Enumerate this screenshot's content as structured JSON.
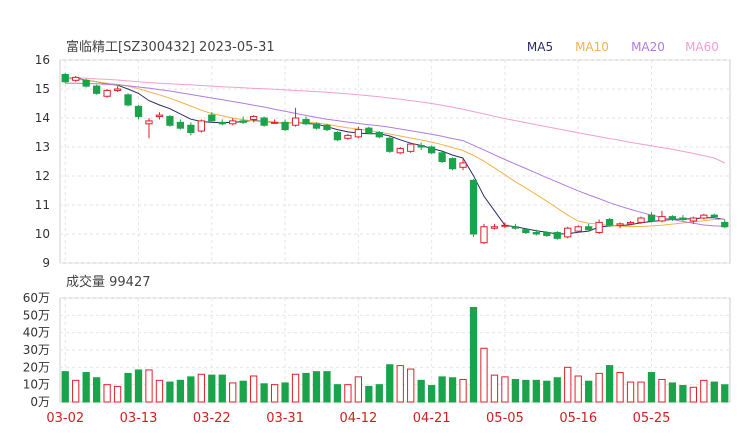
{
  "chart_data": [
    {
      "type": "candlestick",
      "title": "富临精工[SZ300432] 2023-05-31",
      "legend": [
        {
          "name": "MA5",
          "color": "#2a2a6a"
        },
        {
          "name": "MA10",
          "color": "#f2b34a"
        },
        {
          "name": "MA20",
          "color": "#b27ce0"
        },
        {
          "name": "MA60",
          "color": "#f0a0d0"
        }
      ],
      "y_ticks": [
        "16",
        "15",
        "14",
        "13",
        "12",
        "11",
        "10",
        "9"
      ],
      "ylim": [
        9,
        16
      ],
      "x_ticks": [
        {
          "label": "03-02",
          "index": 0
        },
        {
          "label": "03-13",
          "index": 7
        },
        {
          "label": "03-22",
          "index": 14
        },
        {
          "label": "03-31",
          "index": 21
        },
        {
          "label": "04-12",
          "index": 28
        },
        {
          "label": "04-21",
          "index": 35
        },
        {
          "label": "05-05",
          "index": 42
        },
        {
          "label": "05-16",
          "index": 49
        },
        {
          "label": "05-25",
          "index": 56
        }
      ],
      "ohlc": [
        [
          15.5,
          15.55,
          15.2,
          15.25
        ],
        [
          15.3,
          15.45,
          15.25,
          15.4
        ],
        [
          15.3,
          15.35,
          15.05,
          15.1
        ],
        [
          15.1,
          15.15,
          14.8,
          14.85
        ],
        [
          14.75,
          15.0,
          14.7,
          14.95
        ],
        [
          14.95,
          15.1,
          14.9,
          15.0
        ],
        [
          14.8,
          14.85,
          14.4,
          14.45
        ],
        [
          14.4,
          14.45,
          13.95,
          14.05
        ],
        [
          13.8,
          14.0,
          13.3,
          13.9
        ],
        [
          14.05,
          14.2,
          13.95,
          14.1
        ],
        [
          14.05,
          14.1,
          13.7,
          13.75
        ],
        [
          13.85,
          13.95,
          13.6,
          13.65
        ],
        [
          13.75,
          13.85,
          13.4,
          13.5
        ],
        [
          13.55,
          13.95,
          13.5,
          13.9
        ],
        [
          14.1,
          14.2,
          13.85,
          13.9
        ],
        [
          13.85,
          13.95,
          13.75,
          13.8
        ],
        [
          13.8,
          14.0,
          13.75,
          13.9
        ],
        [
          13.9,
          14.05,
          13.8,
          13.85
        ],
        [
          13.95,
          14.1,
          13.85,
          14.05
        ],
        [
          14.0,
          14.05,
          13.7,
          13.75
        ],
        [
          13.85,
          13.95,
          13.8,
          13.85
        ],
        [
          13.85,
          13.95,
          13.55,
          13.6
        ],
        [
          13.75,
          14.35,
          13.7,
          14.0
        ],
        [
          13.95,
          14.05,
          13.75,
          13.8
        ],
        [
          13.8,
          13.85,
          13.6,
          13.65
        ],
        [
          13.75,
          13.8,
          13.55,
          13.6
        ],
        [
          13.5,
          13.55,
          13.2,
          13.25
        ],
        [
          13.3,
          13.45,
          13.25,
          13.4
        ],
        [
          13.35,
          13.7,
          13.3,
          13.6
        ],
        [
          13.65,
          13.7,
          13.45,
          13.5
        ],
        [
          13.5,
          13.55,
          13.3,
          13.35
        ],
        [
          13.3,
          13.35,
          12.8,
          12.85
        ],
        [
          12.8,
          13.0,
          12.75,
          12.95
        ],
        [
          12.85,
          13.15,
          12.8,
          13.1
        ],
        [
          13.05,
          13.15,
          12.9,
          13.0
        ],
        [
          13.0,
          13.05,
          12.75,
          12.8
        ],
        [
          12.8,
          12.85,
          12.45,
          12.5
        ],
        [
          12.6,
          12.65,
          12.2,
          12.25
        ],
        [
          12.3,
          12.6,
          12.2,
          12.45
        ],
        [
          11.85,
          11.9,
          9.9,
          10.0
        ],
        [
          9.7,
          10.35,
          9.65,
          10.25
        ],
        [
          10.2,
          10.35,
          10.15,
          10.25
        ],
        [
          10.3,
          10.4,
          10.2,
          10.3
        ],
        [
          10.25,
          10.35,
          10.15,
          10.2
        ],
        [
          10.15,
          10.2,
          10.0,
          10.05
        ],
        [
          10.05,
          10.15,
          9.95,
          10.0
        ],
        [
          10.05,
          10.1,
          9.9,
          9.95
        ],
        [
          10.05,
          10.1,
          9.8,
          9.85
        ],
        [
          9.9,
          10.25,
          9.85,
          10.2
        ],
        [
          10.1,
          10.3,
          10.05,
          10.25
        ],
        [
          10.25,
          10.35,
          10.1,
          10.15
        ],
        [
          10.05,
          10.5,
          10.0,
          10.4
        ],
        [
          10.5,
          10.55,
          10.25,
          10.3
        ],
        [
          10.3,
          10.4,
          10.2,
          10.35
        ],
        [
          10.35,
          10.45,
          10.3,
          10.4
        ],
        [
          10.4,
          10.6,
          10.35,
          10.55
        ],
        [
          10.65,
          10.75,
          10.4,
          10.45
        ],
        [
          10.45,
          10.8,
          10.4,
          10.6
        ],
        [
          10.6,
          10.65,
          10.45,
          10.5
        ],
        [
          10.55,
          10.65,
          10.45,
          10.5
        ],
        [
          10.45,
          10.6,
          10.35,
          10.55
        ],
        [
          10.55,
          10.7,
          10.5,
          10.65
        ],
        [
          10.65,
          10.7,
          10.55,
          10.6
        ],
        [
          10.4,
          10.5,
          10.2,
          10.25
        ]
      ],
      "ma5": [
        15.4,
        15.38,
        15.3,
        15.25,
        15.18,
        15.13,
        15.0,
        14.85,
        14.6,
        14.45,
        14.32,
        14.14,
        13.96,
        13.88,
        13.85,
        13.84,
        13.85,
        13.88,
        13.92,
        13.87,
        13.85,
        13.82,
        13.86,
        13.81,
        13.79,
        13.7,
        13.6,
        13.52,
        13.48,
        13.46,
        13.46,
        13.38,
        13.25,
        13.13,
        13.05,
        12.95,
        12.86,
        12.72,
        12.62,
        12.01,
        11.3,
        10.8,
        10.3,
        10.25,
        10.18,
        10.11,
        10.06,
        10.0,
        10.01,
        10.06,
        10.1,
        10.24,
        10.28,
        10.29,
        10.32,
        10.39,
        10.43,
        10.47,
        10.5,
        10.52,
        10.52,
        10.56,
        10.56,
        10.5
      ],
      "ma10": [
        15.35,
        15.34,
        15.3,
        15.25,
        15.2,
        15.16,
        15.1,
        15.01,
        14.9,
        14.8,
        14.68,
        14.55,
        14.41,
        14.27,
        14.15,
        14.08,
        14.0,
        13.94,
        13.9,
        13.86,
        13.84,
        13.84,
        13.85,
        13.85,
        13.83,
        13.78,
        13.72,
        13.66,
        13.62,
        13.57,
        13.51,
        13.45,
        13.38,
        13.31,
        13.24,
        13.17,
        13.08,
        12.98,
        12.88,
        12.71,
        12.51,
        12.28,
        12.04,
        11.8,
        11.59,
        11.36,
        11.13,
        10.89,
        10.65,
        10.45,
        10.37,
        10.34,
        10.29,
        10.27,
        10.26,
        10.26,
        10.28,
        10.3,
        10.34,
        10.38,
        10.42,
        10.46,
        10.5,
        10.51
      ],
      "ma20": [
        15.2,
        15.2,
        15.19,
        15.18,
        15.16,
        15.14,
        15.11,
        15.07,
        15.03,
        14.98,
        14.93,
        14.87,
        14.81,
        14.75,
        14.69,
        14.63,
        14.57,
        14.51,
        14.44,
        14.38,
        14.3,
        14.23,
        14.16,
        14.09,
        14.02,
        13.96,
        13.91,
        13.86,
        13.81,
        13.77,
        13.73,
        13.68,
        13.62,
        13.56,
        13.5,
        13.44,
        13.37,
        13.29,
        13.22,
        13.06,
        12.9,
        12.73,
        12.57,
        12.41,
        12.26,
        12.1,
        11.94,
        11.79,
        11.64,
        11.49,
        11.35,
        11.22,
        11.08,
        10.96,
        10.85,
        10.75,
        10.65,
        10.57,
        10.5,
        10.43,
        10.37,
        10.31,
        10.28,
        10.27
      ],
      "ma60": [
        15.4,
        15.39,
        15.37,
        15.35,
        15.33,
        15.31,
        15.28,
        15.25,
        15.22,
        15.2,
        15.18,
        15.16,
        15.14,
        15.12,
        15.1,
        15.08,
        15.06,
        15.04,
        15.02,
        15.01,
        14.99,
        14.97,
        14.95,
        14.93,
        14.91,
        14.89,
        14.86,
        14.83,
        14.8,
        14.77,
        14.73,
        14.69,
        14.65,
        14.6,
        14.55,
        14.5,
        14.44,
        14.37,
        14.3,
        14.22,
        14.14,
        14.06,
        13.98,
        13.91,
        13.84,
        13.77,
        13.7,
        13.63,
        13.56,
        13.49,
        13.42,
        13.36,
        13.29,
        13.23,
        13.16,
        13.1,
        13.04,
        12.98,
        12.92,
        12.85,
        12.78,
        12.7,
        12.62,
        12.45
      ]
    },
    {
      "type": "bar",
      "title": "成交量 99427",
      "y_ticks": [
        "60万",
        "50万",
        "40万",
        "30万",
        "20万",
        "10万",
        "0万"
      ],
      "ylim": [
        0,
        600000
      ],
      "values": [
        175000,
        125000,
        170000,
        140000,
        100000,
        90000,
        165000,
        185000,
        185000,
        125000,
        115000,
        125000,
        145000,
        160000,
        155000,
        155000,
        110000,
        120000,
        150000,
        105000,
        100000,
        110000,
        160000,
        165000,
        175000,
        175000,
        100000,
        100000,
        145000,
        90000,
        100000,
        215000,
        210000,
        190000,
        125000,
        95000,
        145000,
        140000,
        130000,
        545000,
        310000,
        155000,
        145000,
        130000,
        125000,
        125000,
        120000,
        140000,
        200000,
        150000,
        120000,
        165000,
        210000,
        170000,
        115000,
        115000,
        170000,
        130000,
        110000,
        95000,
        85000,
        125000,
        115000,
        99427
      ]
    }
  ]
}
